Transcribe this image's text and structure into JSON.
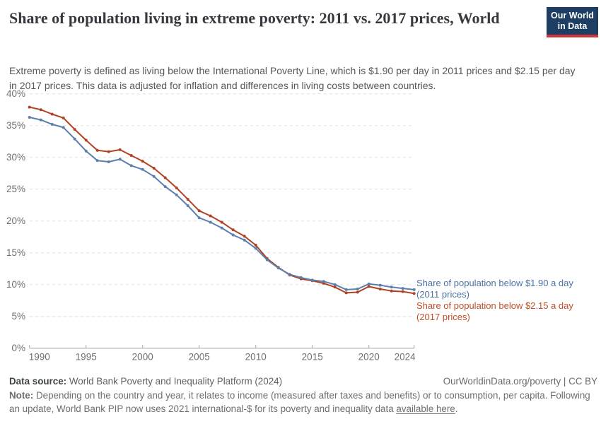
{
  "brand": {
    "navy": "#1d3d63",
    "logo_red": "#d0353c"
  },
  "header": {
    "title": "Share of population living in extreme poverty: 2011 vs. 2017 prices, World",
    "subtitle": "Extreme poverty is defined as living below the International Poverty Line, which is $1.90 per day in 2011 prices and $2.15 per day in 2017 prices. This data is adjusted for inflation and differences in living costs between countries.",
    "logo": {
      "line1": "Our World",
      "line2": "in Data"
    }
  },
  "chart_data": {
    "type": "line",
    "title": "Share of population living in extreme poverty: 2011 vs. 2017 prices, World",
    "xlabel": "",
    "ylabel": "",
    "xlim": [
      1990,
      2024
    ],
    "ylim": [
      0,
      40
    ],
    "grid": "dashed-horizontal",
    "grid_color": "#e0e0e0",
    "axis_color": "#a2a2a2",
    "tick_label_color": "#6f6f6f",
    "x": [
      1990,
      1991,
      1992,
      1993,
      1994,
      1995,
      1996,
      1997,
      1998,
      1999,
      2000,
      2001,
      2002,
      2003,
      2004,
      2005,
      2006,
      2007,
      2008,
      2009,
      2010,
      2011,
      2012,
      2013,
      2014,
      2015,
      2016,
      2017,
      2018,
      2019,
      2020,
      2021,
      2022,
      2023,
      2024
    ],
    "xticks": [
      1990,
      1995,
      2000,
      2005,
      2010,
      2015,
      2020,
      2024
    ],
    "ytick_values": [
      0,
      5,
      10,
      15,
      20,
      25,
      30,
      35,
      40
    ],
    "yticks": [
      "0%",
      "5%",
      "10%",
      "15%",
      "20%",
      "25%",
      "30%",
      "35%",
      "40%"
    ],
    "legend_position": "right-of-line-ends",
    "series": [
      {
        "id": "below-190-2011-prices",
        "name": "Share of population below $1.90 a day (2011 prices)",
        "label_line1": "Share of population below $1.90 a day",
        "label_line2": "(2011 prices)",
        "line_color": "#5b7fae",
        "label_color": "#4c72a5",
        "values": [
          36.3,
          35.9,
          35.2,
          34.7,
          32.9,
          31.0,
          29.5,
          29.3,
          29.7,
          28.7,
          28.1,
          27.0,
          25.4,
          24.1,
          22.4,
          20.5,
          19.8,
          18.9,
          17.8,
          17.0,
          15.7,
          13.9,
          12.6,
          11.6,
          11.1,
          10.7,
          10.5,
          10.0,
          9.2,
          9.3,
          10.1,
          9.9,
          9.6,
          9.4,
          9.2
        ]
      },
      {
        "id": "below-215-2017-prices",
        "name": "Share of population below $2.15 a day (2017 prices)",
        "label_line1": "Share of population below $2.15 a day",
        "label_line2": "(2017 prices)",
        "line_color": "#b04223",
        "label_color": "#c04e2a",
        "values": [
          37.9,
          37.5,
          36.8,
          36.2,
          34.4,
          32.7,
          31.1,
          30.9,
          31.2,
          30.3,
          29.4,
          28.3,
          26.8,
          25.2,
          23.4,
          21.6,
          20.8,
          19.8,
          18.6,
          17.6,
          16.2,
          14.1,
          12.7,
          11.5,
          10.9,
          10.6,
          10.2,
          9.6,
          8.7,
          8.8,
          9.7,
          9.3,
          9.0,
          8.9,
          8.6
        ]
      }
    ]
  },
  "footer": {
    "datasource_label": "Data source:",
    "datasource_value": "World Bank Poverty and Inequality Platform (2024)",
    "attribution": "OurWorldinData.org/poverty | CC BY",
    "note_label": "Note:",
    "note_text": "Depending on the country and year, it relates to income (measured after taxes and benefits) or to consumption, per capita. Following an update, World Bank PIP now uses 2021 international-$ for its poverty and inequality data ",
    "note_link": "available here",
    "note_suffix": "."
  }
}
